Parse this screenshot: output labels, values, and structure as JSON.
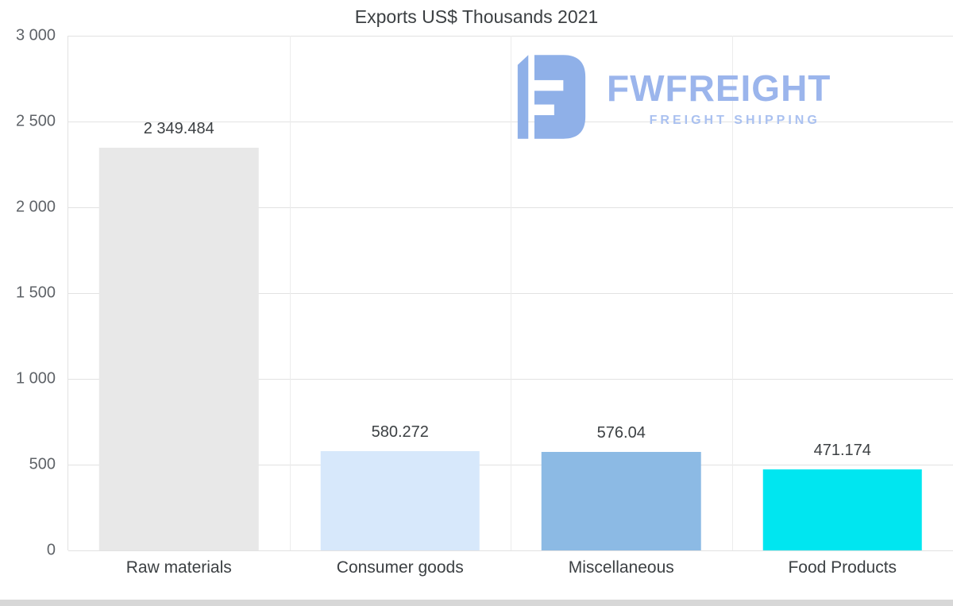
{
  "chart_data": {
    "type": "bar",
    "title": "Exports US$ Thousands 2021",
    "categories": [
      "Raw materials",
      "Consumer goods",
      "Miscellaneous",
      "Food Products"
    ],
    "values": [
      2349.484,
      580.272,
      576.04,
      471.174
    ],
    "value_labels": [
      "2 349.484",
      "580.272",
      "576.04",
      "471.174"
    ],
    "bar_colors": [
      "#e8e8e8",
      "#d7e8fb",
      "#8cbae4",
      "#00e6f0"
    ],
    "xlabel": "",
    "ylabel": "",
    "ylim": [
      0,
      3000
    ],
    "yticks": [
      0,
      500,
      1000,
      1500,
      2000,
      2500,
      3000
    ],
    "ytick_labels": [
      "0",
      "500",
      "1 000",
      "1 500",
      "2 000",
      "2 500",
      "3 000"
    ],
    "grid": true,
    "legend": false
  },
  "logo": {
    "name": "FWFREIGHT",
    "tagline": "FREIGHT SHIPPING",
    "accent_color": "#9bb5ec"
  }
}
